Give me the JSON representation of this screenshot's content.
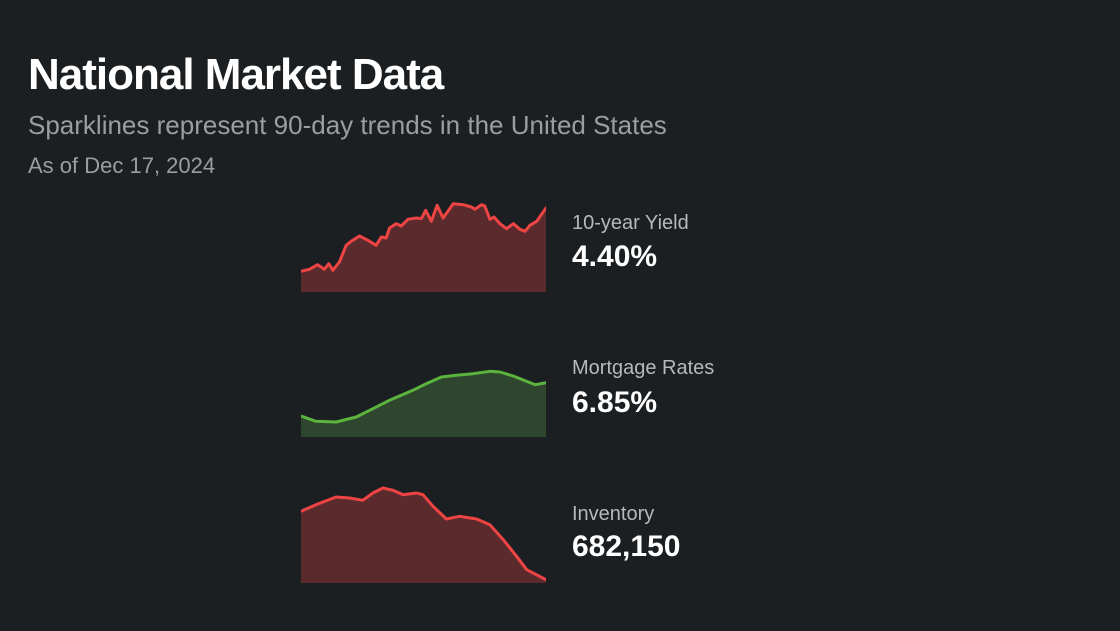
{
  "header": {
    "title": "National Market Data",
    "subtitle": "Sparklines represent 90-day trends in the United States",
    "as_of": "As of Dec 17, 2024"
  },
  "chart_data": [
    {
      "type": "area",
      "label": "10-year Yield",
      "value": "4.40%",
      "color": "#ef4444",
      "fill": "#5b2a2d",
      "x_unit": "day",
      "points": [
        [
          0,
          62
        ],
        [
          3.1,
          68
        ],
        [
          6.1,
          82
        ],
        [
          8.6,
          68
        ],
        [
          10.2,
          85
        ],
        [
          11.7,
          65
        ],
        [
          14.1,
          90
        ],
        [
          16.6,
          140
        ],
        [
          18.4,
          152
        ],
        [
          21.5,
          168
        ],
        [
          24.6,
          155
        ],
        [
          27.6,
          140
        ],
        [
          29.5,
          165
        ],
        [
          31.3,
          162
        ],
        [
          32.5,
          192
        ],
        [
          35,
          205
        ],
        [
          36.8,
          198
        ],
        [
          39.3,
          218
        ],
        [
          42.4,
          222
        ],
        [
          44.2,
          220
        ],
        [
          45.8,
          245
        ],
        [
          47.9,
          212
        ],
        [
          50,
          260
        ],
        [
          52.2,
          222
        ],
        [
          55.9,
          265
        ],
        [
          59.6,
          262
        ],
        [
          62.6,
          255
        ],
        [
          63.9,
          248
        ],
        [
          66.3,
          262
        ],
        [
          67.5,
          258
        ],
        [
          69.4,
          218
        ],
        [
          70.9,
          225
        ],
        [
          73.1,
          205
        ],
        [
          75.5,
          190
        ],
        [
          78,
          205
        ],
        [
          80.4,
          188
        ],
        [
          82.3,
          182
        ],
        [
          84.1,
          200
        ],
        [
          86.6,
          212
        ],
        [
          90,
          252
        ]
      ]
    },
    {
      "type": "area",
      "label": "Mortgage Rates",
      "value": "6.85%",
      "color": "#5cb33d",
      "fill": "#2f462e",
      "x_unit": "day",
      "points": [
        [
          0,
          63
        ],
        [
          5.5,
          47
        ],
        [
          12.9,
          45
        ],
        [
          20.3,
          60
        ],
        [
          26.4,
          85
        ],
        [
          32.5,
          110
        ],
        [
          41.1,
          140
        ],
        [
          46,
          160
        ],
        [
          51.6,
          180
        ],
        [
          57.1,
          185
        ],
        [
          63.2,
          190
        ],
        [
          69.4,
          197
        ],
        [
          73.1,
          195
        ],
        [
          78,
          183
        ],
        [
          86,
          157
        ],
        [
          90,
          163
        ]
      ]
    },
    {
      "type": "area",
      "label": "Inventory",
      "value": "682,150",
      "color": "#ef4444",
      "fill": "#5b2a2d",
      "x_unit": "day",
      "points": [
        [
          0,
          215
        ],
        [
          5.5,
          235
        ],
        [
          12.9,
          258
        ],
        [
          17.8,
          255
        ],
        [
          22.7,
          248
        ],
        [
          26.4,
          270
        ],
        [
          30.1,
          285
        ],
        [
          33.8,
          278
        ],
        [
          37.5,
          265
        ],
        [
          42.4,
          270
        ],
        [
          44.8,
          265
        ],
        [
          48.5,
          230
        ],
        [
          53.4,
          192
        ],
        [
          58.3,
          200
        ],
        [
          64.5,
          192
        ],
        [
          69.4,
          175
        ],
        [
          74.3,
          130
        ],
        [
          79.2,
          80
        ],
        [
          82.9,
          40
        ],
        [
          90,
          10
        ]
      ]
    }
  ]
}
